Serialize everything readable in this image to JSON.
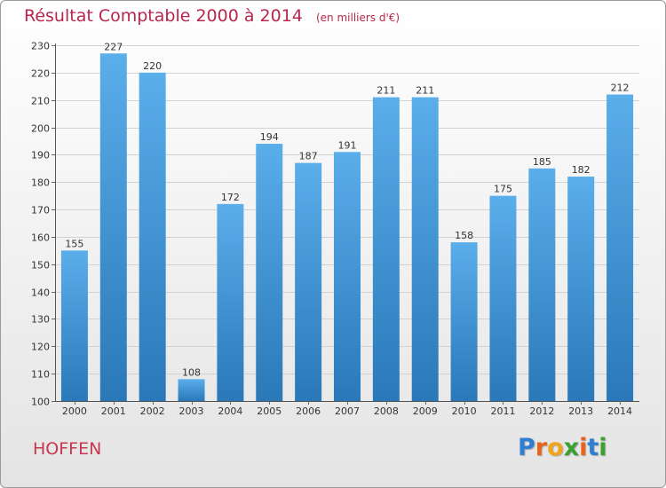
{
  "header": {
    "title": "Résultat Comptable 2000 à 2014",
    "unit": "(en milliers d'€)"
  },
  "footer": {
    "commune": "HOFFEN",
    "logo_letters": [
      "P",
      "r",
      "o",
      "x",
      "i",
      "t",
      "i"
    ],
    "logo_colors": [
      "#2f7fd0",
      "#e8641b",
      "#f2a51a",
      "#3aa12f",
      "#e8641b",
      "#2f7fd0",
      "#3aa12f"
    ]
  },
  "chart_data": {
    "type": "bar",
    "title": "Résultat Comptable 2000 à 2014",
    "subtitle": "(en milliers d'€)",
    "categories": [
      "2000",
      "2001",
      "2002",
      "2003",
      "2004",
      "2005",
      "2006",
      "2007",
      "2008",
      "2009",
      "2010",
      "2011",
      "2012",
      "2013",
      "2014"
    ],
    "values": [
      155,
      227,
      220,
      108,
      172,
      194,
      187,
      191,
      211,
      211,
      158,
      175,
      185,
      182,
      212
    ],
    "ylim": [
      100,
      230
    ],
    "yticks": [
      100,
      110,
      120,
      130,
      140,
      150,
      160,
      170,
      180,
      190,
      200,
      210,
      220,
      230
    ],
    "grid": true,
    "bar_color_top": "#5aaeea",
    "bar_color_bottom": "#2a78b8"
  }
}
